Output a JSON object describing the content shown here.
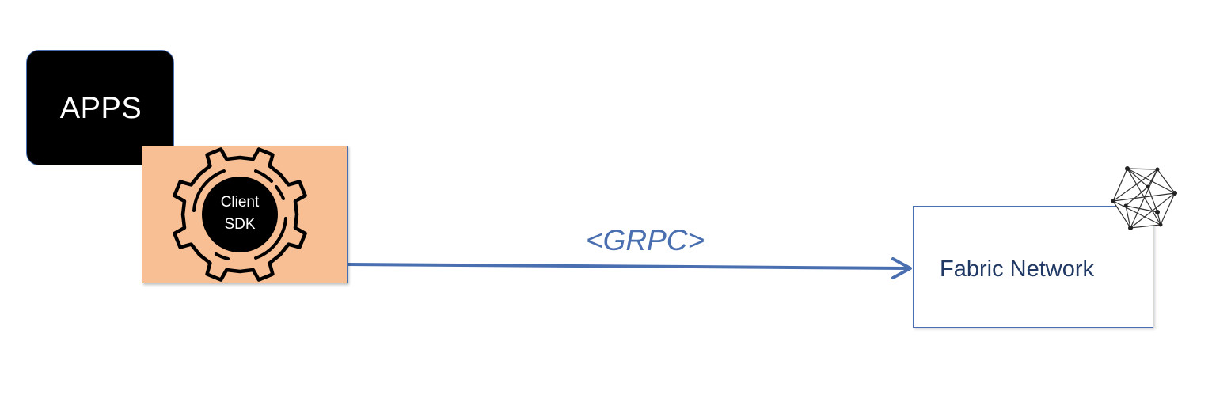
{
  "apps": {
    "label": "APPS"
  },
  "sdk": {
    "line1": "Client",
    "line2": "SDK"
  },
  "connection": {
    "protocol_label": "<GRPC>"
  },
  "fabric": {
    "label": "Fabric Network",
    "icon": "hyperledger-network-icon"
  },
  "colors": {
    "apps_fill": "#000000",
    "sdk_fill": "#f8bf94",
    "outline": "#4a6fb0",
    "arrow": "#4a6fb0",
    "fabric_text": "#203864"
  }
}
